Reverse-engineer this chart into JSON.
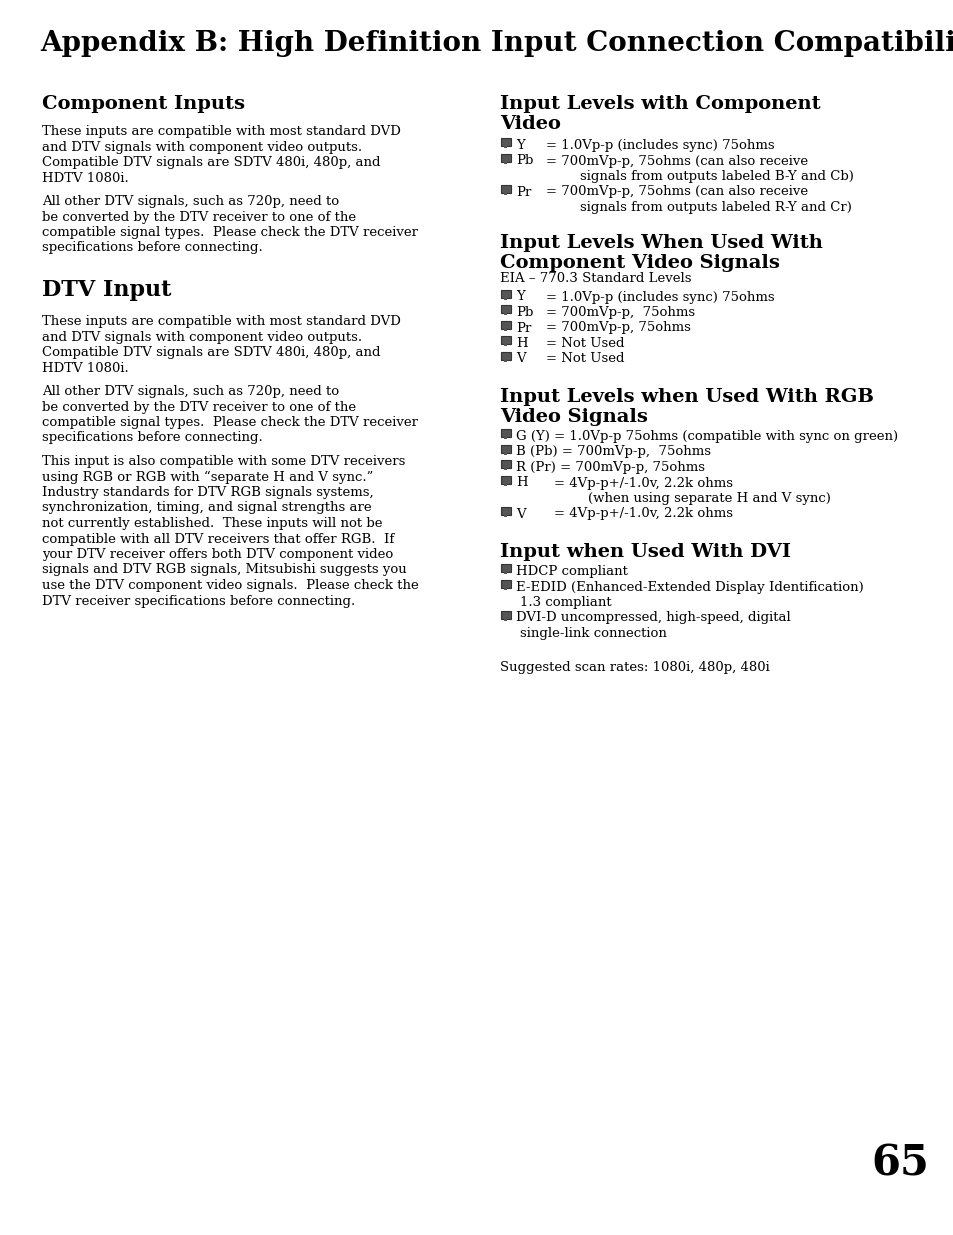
{
  "bg_color": "#ffffff",
  "title": "Appendix B: High Definition Input Connection Compatibility",
  "page_number": "65",
  "title_fontsize": 20,
  "heading1_fontsize": 14,
  "heading2_fontsize": 16,
  "body_fontsize": 9.5,
  "sub_fontsize": 9.5,
  "left_col": {
    "section1_heading": "Component Inputs",
    "section1_body1": [
      "These inputs are compatible with most standard DVD",
      "and DTV signals with component video outputs.",
      "Compatible DTV signals are SDTV 480i, 480p, and",
      "HDTV 1080i."
    ],
    "section1_body2": [
      "All other DTV signals, such as 720p, need to",
      "be converted by the DTV receiver to one of the",
      "compatible signal types.  Please check the DTV receiver",
      "specifications before connecting."
    ],
    "section2_heading": "DTV Input",
    "section2_body1": [
      "These inputs are compatible with most standard DVD",
      "and DTV signals with component video outputs.",
      "Compatible DTV signals are SDTV 480i, 480p, and",
      "HDTV 1080i."
    ],
    "section2_body2": [
      "All other DTV signals, such as 720p, need to",
      "be converted by the DTV receiver to one of the",
      "compatible signal types.  Please check the DTV receiver",
      "specifications before connecting."
    ],
    "section2_body3": [
      "This input is also compatible with some DTV receivers",
      "using RGB or RGB with “separate H and V sync.”",
      "Industry standards for DTV RGB signals systems,",
      "synchronization, timing, and signal strengths are",
      "not currently established.  These inputs will not be",
      "compatible with all DTV receivers that offer RGB.  If",
      "your DTV receiver offers both DTV component video",
      "signals and DTV RGB signals, Mitsubishi suggests you",
      "use the DTV component video signals.  Please check the",
      "DTV receiver specifications before connecting."
    ]
  },
  "right_col": {
    "section1_heading_line1": "Input Levels with Component",
    "section1_heading_line2": "Video",
    "section1_bullets": [
      {
        "label": "Y",
        "line1": "= 1.0Vp-p (includes sync) 75ohms",
        "line2": ""
      },
      {
        "label": "Pb",
        "line1": "= 700mVp-p, 75ohms (can also receive",
        "line2": "signals from outputs labeled B-Y and Cb)"
      },
      {
        "label": "Pr",
        "line1": "= 700mVp-p, 75ohms (can also receive",
        "line2": "signals from outputs labeled R-Y and Cr)"
      }
    ],
    "section2_heading_line1": "Input Levels When Used With",
    "section2_heading_line2": "Component Video Signals",
    "section2_subheading": "EIA – 770.3 Standard Levels",
    "section2_bullets": [
      {
        "label": "Y",
        "line1": "= 1.0Vp-p (includes sync) 75ohms",
        "line2": ""
      },
      {
        "label": "Pb",
        "line1": "= 700mVp-p,  75ohms",
        "line2": ""
      },
      {
        "label": "Pr",
        "line1": "= 700mVp-p, 75ohms",
        "line2": ""
      },
      {
        "label": "H",
        "line1": "= Not Used",
        "line2": ""
      },
      {
        "label": "V",
        "line1": "= Not Used",
        "line2": ""
      }
    ],
    "section3_heading_line1": "Input Levels when Used With RGB",
    "section3_heading_line2": "Video Signals",
    "section3_bullets": [
      {
        "label": "G (Y) =",
        "line1": "1.0Vp-p 75ohms (compatible with sync on green)",
        "line2": ""
      },
      {
        "label": "B (Pb) =",
        "line1": "700mVp-p,  75ohms",
        "line2": ""
      },
      {
        "label": "R (Pr) =",
        "line1": "700mVp-p, 75ohms",
        "line2": ""
      },
      {
        "label": "H",
        "line1": "= 4Vp-p+/-1.0v, 2.2k ohms",
        "line2": "(when using separate H and V sync)"
      },
      {
        "label": "V",
        "line1": "= 4Vp-p+/-1.0v, 2.2k ohms",
        "line2": ""
      }
    ],
    "section4_heading": "Input when Used With DVI",
    "section4_bullets": [
      {
        "line1": "HDCP compliant",
        "line2": ""
      },
      {
        "line1": "E-EDID (Enhanced-Extended Display Identification)",
        "line2": "1.3 compliant"
      },
      {
        "line1": "DVI-D uncompressed, high-speed, digital",
        "line2": "single-link connection"
      }
    ],
    "footer": "Suggested scan rates: 1080i, 480p, 480i"
  }
}
